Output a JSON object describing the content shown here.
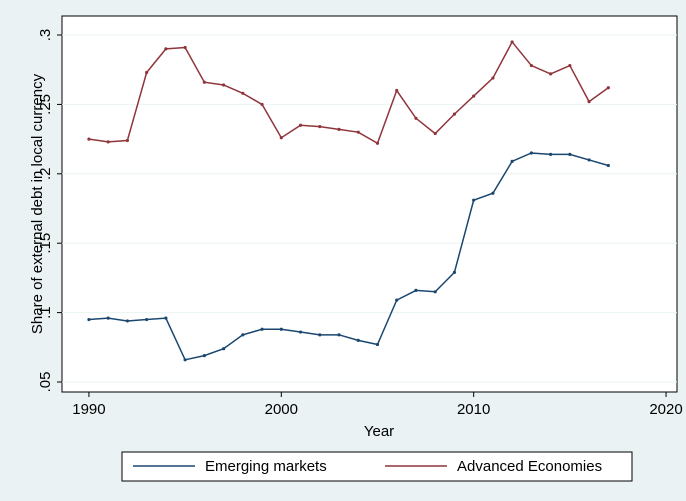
{
  "chart_data": {
    "type": "line",
    "x_label": "Year",
    "y_label": "Share of external debt in local currency",
    "x": [
      1990,
      1991,
      1992,
      1993,
      1994,
      1995,
      1996,
      1997,
      1998,
      1999,
      2000,
      2001,
      2002,
      2003,
      2004,
      2005,
      2006,
      2007,
      2008,
      2009,
      2010,
      2011,
      2012,
      2013,
      2014,
      2015,
      2016,
      2017
    ],
    "series": [
      {
        "name": "Emerging markets",
        "color": "#1a476f",
        "values": [
          0.095,
          0.096,
          0.094,
          0.095,
          0.096,
          0.066,
          0.069,
          0.074,
          0.084,
          0.088,
          0.088,
          0.086,
          0.084,
          0.084,
          0.08,
          0.077,
          0.109,
          0.116,
          0.115,
          0.129,
          0.181,
          0.186,
          0.209,
          0.215,
          0.214,
          0.214,
          0.21,
          0.206
        ]
      },
      {
        "name": "Advanced Economies",
        "color": "#90353b",
        "values": [
          0.225,
          0.223,
          0.224,
          0.273,
          0.29,
          0.291,
          0.266,
          0.264,
          0.258,
          0.25,
          0.226,
          0.235,
          0.234,
          0.232,
          0.23,
          0.222,
          0.26,
          0.24,
          0.229,
          0.243,
          0.256,
          0.269,
          0.295,
          0.278,
          0.272,
          0.278,
          0.252,
          0.262
        ]
      }
    ],
    "xlim": [
      1988.6,
      2020.57
    ],
    "xticks": [
      1990,
      2000,
      2010,
      2020
    ],
    "ylim": [
      0.0428,
      0.3137
    ],
    "yticks": [
      {
        "value": 0.05,
        "label": ".05"
      },
      {
        "value": 0.1,
        "label": ".1"
      },
      {
        "value": 0.15,
        "label": ".15"
      },
      {
        "value": 0.2,
        "label": ".2"
      },
      {
        "value": 0.25,
        "label": ".25"
      },
      {
        "value": 0.3,
        "label": ".3"
      }
    ],
    "grid": true,
    "legend": "bottom"
  }
}
